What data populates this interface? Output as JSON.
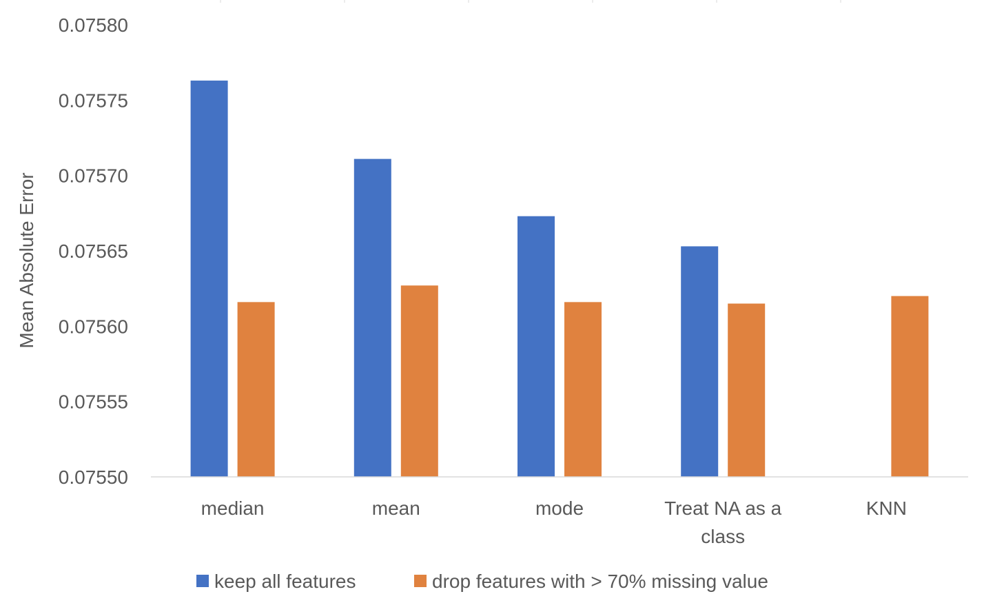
{
  "chart_data": {
    "type": "bar",
    "title": "",
    "xlabel": "",
    "ylabel": "Mean Absolute Error",
    "ylim": [
      0.0755,
      0.0758
    ],
    "yticks": [
      "0.07550",
      "0.07555",
      "0.07560",
      "0.07565",
      "0.07570",
      "0.07575",
      "0.07580"
    ],
    "ytick_values": [
      0.0755,
      0.07555,
      0.0756,
      0.07565,
      0.0757,
      0.07575,
      0.0758
    ],
    "categories": [
      [
        "median"
      ],
      [
        "mean"
      ],
      [
        "mode"
      ],
      [
        "Treat NA as a",
        "class"
      ],
      [
        "KNN"
      ]
    ],
    "series": [
      {
        "name": "keep all features",
        "color": "#4472C4",
        "values": [
          0.075763,
          0.075711,
          0.075673,
          0.075653,
          null
        ]
      },
      {
        "name": "drop features with > 70% missing value",
        "color": "#E0823F",
        "values": [
          0.075616,
          0.075627,
          0.075616,
          0.075615,
          0.07562
        ]
      }
    ],
    "grid": false,
    "legend_position": "bottom"
  }
}
